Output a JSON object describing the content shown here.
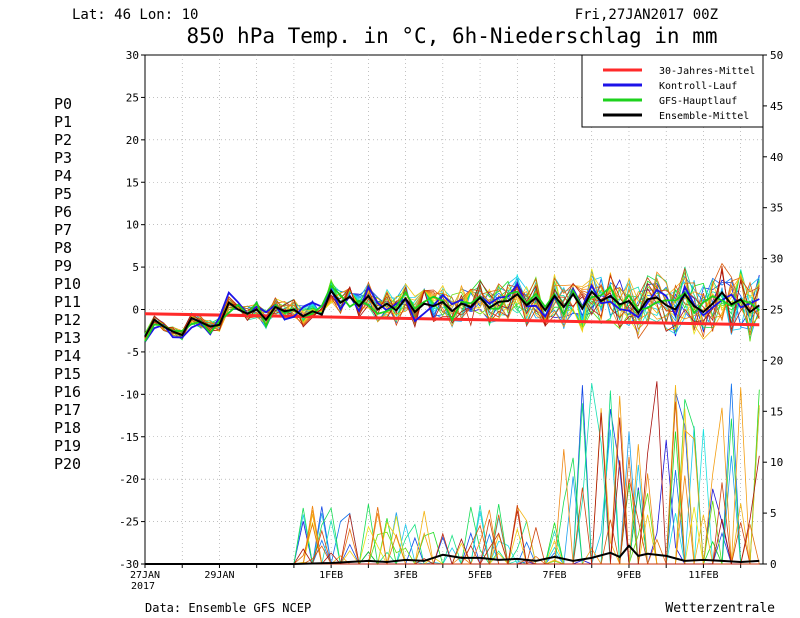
{
  "header": {
    "location": "Lat: 46 Lon: 10",
    "date": "Fri,27JAN2017 00Z",
    "title": "850 hPa Temp. in °C, 6h-Niederschlag in mm"
  },
  "footer": {
    "source": "Data: Ensemble GFS NCEP",
    "brand": "Wetterzentrale"
  },
  "x_labels": [
    {
      "day": 0,
      "text": "27JAN"
    },
    {
      "day": 2,
      "text": "29JAN"
    },
    {
      "day": 5,
      "text": "1FEB"
    },
    {
      "day": 7,
      "text": "3FEB"
    },
    {
      "day": 9,
      "text": "5FEB"
    },
    {
      "day": 11,
      "text": "7FEB"
    },
    {
      "day": 13,
      "text": "9FEB"
    },
    {
      "day": 15,
      "text": "11FEB"
    }
  ],
  "x_year_label": "2017",
  "y_left_ticks": [
    30,
    25,
    20,
    15,
    10,
    5,
    0,
    -5,
    -10,
    -15,
    -20,
    -25,
    -30
  ],
  "y_right_ticks": [
    50,
    45,
    40,
    35,
    30,
    25,
    20,
    15,
    10,
    5,
    0
  ],
  "members": [
    {
      "label": "P0",
      "color": "#1c12d6"
    },
    {
      "label": "P1",
      "color": "#1247e6"
    },
    {
      "label": "P2",
      "color": "#1273ee"
    },
    {
      "label": "P3",
      "color": "#1aa0ee"
    },
    {
      "label": "P4",
      "color": "#1ac8ee"
    },
    {
      "label": "P5",
      "color": "#19e0df"
    },
    {
      "label": "P6",
      "color": "#17e0b3"
    },
    {
      "label": "P7",
      "color": "#16e080"
    },
    {
      "label": "P8",
      "color": "#16dd55"
    },
    {
      "label": "P9",
      "color": "#1ddd22"
    },
    {
      "label": "P10",
      "color": "#63dd10"
    },
    {
      "label": "P11",
      "color": "#e8e212"
    },
    {
      "label": "P12",
      "color": "#f2cd12"
    },
    {
      "label": "P13",
      "color": "#f3b412"
    },
    {
      "label": "P14",
      "color": "#f39e12"
    },
    {
      "label": "P15",
      "color": "#f08712"
    },
    {
      "label": "P16",
      "color": "#e4700e"
    },
    {
      "label": "P17",
      "color": "#d95a0d"
    },
    {
      "label": "P18",
      "color": "#cf430d"
    },
    {
      "label": "P19",
      "color": "#c0280d"
    },
    {
      "label": "P20",
      "color": "#a9110d"
    }
  ],
  "legend": [
    {
      "label": "30-Jahres-Mittel",
      "color": "#ff2a2a"
    },
    {
      "label": "Kontroll-Lauf",
      "color": "#1c12e8"
    },
    {
      "label": "GFS-Hauptlauf",
      "color": "#1dd21d"
    },
    {
      "label": "Ensemble-Mittel",
      "color": "#000000"
    }
  ],
  "chart_data": {
    "type": "line",
    "title": "850 hPa Temp. in °C, 6h-Niederschlag in mm",
    "x_unit": "days since 27JAN2017 00Z",
    "ylim_left": [
      -30,
      30
    ],
    "ylim_right": [
      0,
      50
    ],
    "grid": true,
    "legend_position": "top-right",
    "climate_mean": {
      "x": [
        0,
        16.5
      ],
      "y": [
        -0.5,
        -1.8
      ]
    },
    "ensemble_mean_temp": {
      "x": [
        0,
        0.25,
        0.5,
        0.75,
        1,
        1.25,
        1.5,
        1.75,
        2,
        2.25,
        2.5,
        2.75,
        3,
        3.25,
        3.5,
        3.75,
        4,
        4.25,
        4.5,
        4.75,
        5,
        5.25,
        5.5,
        5.75,
        6,
        6.25,
        6.5,
        6.75,
        7,
        7.25,
        7.5,
        7.75,
        8,
        8.25,
        8.5,
        8.75,
        9,
        9.25,
        9.5,
        9.75,
        10,
        10.25,
        10.5,
        10.75,
        11,
        11.25,
        11.5,
        11.75,
        12,
        12.25,
        12.5,
        12.75,
        13,
        13.25,
        13.5,
        13.75,
        14,
        14.25,
        14.5,
        14.75,
        15,
        15.25,
        15.5,
        15.75,
        16,
        16.25,
        16.5
      ],
      "y": [
        -3.2,
        -1.2,
        -2,
        -2.6,
        -3,
        -1,
        -1.5,
        -2,
        -1.8,
        0.8,
        0,
        -0.5,
        0,
        -1.2,
        0.3,
        -0.2,
        0,
        -0.8,
        -0.2,
        -0.6,
        2.2,
        0.8,
        1.5,
        0.4,
        1.6,
        0,
        0.7,
        -0.1,
        1.3,
        -0.3,
        0.7,
        0.4,
        0.9,
        -0.2,
        0.7,
        0.3,
        1.4,
        0.2,
        0.9,
        1.0,
        1.8,
        0.5,
        1.4,
        -0.1,
        1.6,
        0.3,
        1.8,
        0.1,
        2.1,
        1.0,
        1.6,
        0.6,
        1.0,
        -0.4,
        1.2,
        1.4,
        0.5,
        0,
        1.8,
        0.4,
        -0.3,
        0.7,
        2,
        0.6,
        1.2,
        -0.3,
        0.5
      ]
    },
    "ensemble_mean_precip": {
      "x": [
        0,
        1,
        2,
        3,
        4,
        5,
        6,
        6.5,
        7,
        7.5,
        8,
        8.5,
        9,
        9.5,
        10,
        10.5,
        11,
        11.5,
        12,
        12.5,
        12.75,
        13,
        13.25,
        13.5,
        14,
        14.5,
        15,
        15.5,
        16,
        16.5
      ],
      "y": [
        0,
        0,
        0,
        0,
        0,
        0.1,
        0.3,
        0.2,
        0.4,
        0.3,
        0.9,
        0.6,
        0.6,
        0.4,
        0.5,
        0.3,
        0.7,
        0.3,
        0.6,
        1.1,
        0.7,
        1.8,
        0.8,
        1.0,
        0.8,
        0.3,
        0.4,
        0.3,
        0.2,
        0.3
      ]
    }
  }
}
